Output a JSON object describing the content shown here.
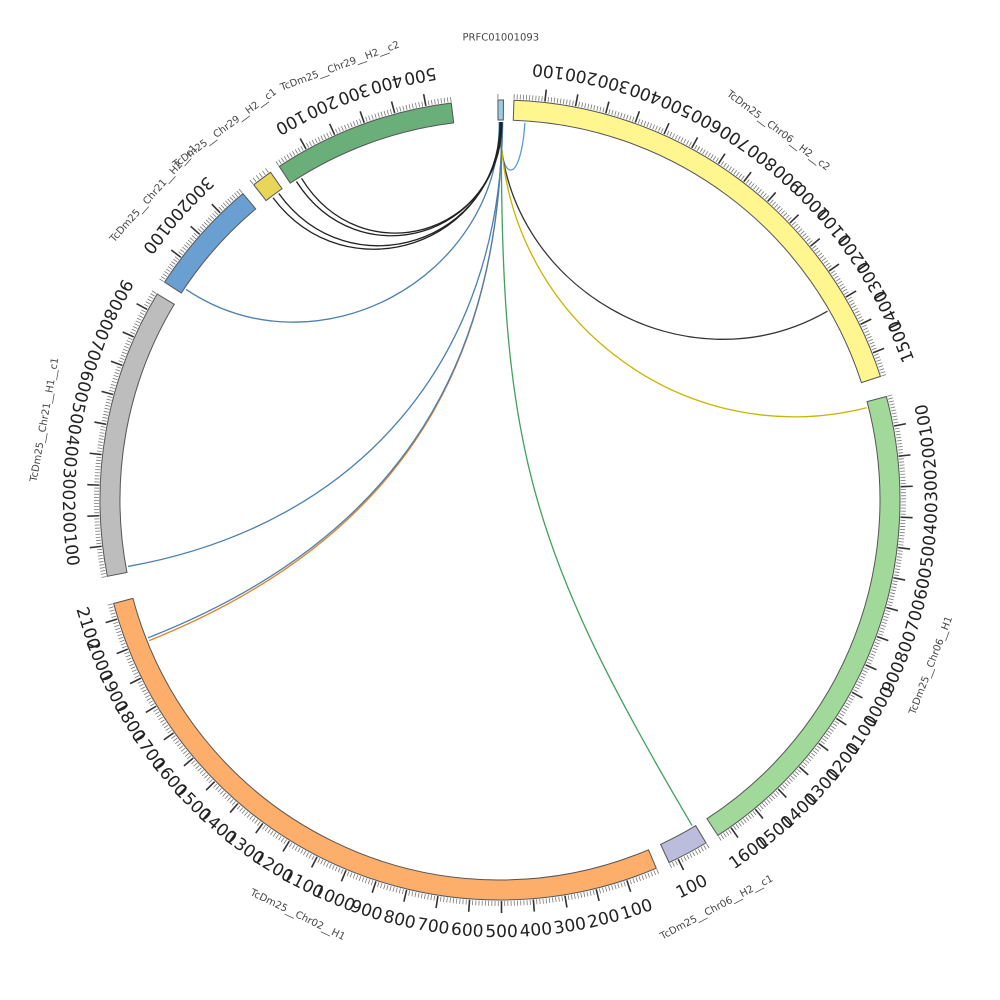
{
  "segments": [
    {
      "id": "prfc",
      "name": "PRFC01001093",
      "length": 8,
      "color": "#9ecae1",
      "start_deg": -0.3,
      "end_deg": 0.5,
      "tick_labels": []
    },
    {
      "id": "chr06_h2_c2",
      "name": "TcDm25__Chr06__H2__c2",
      "length": 1580,
      "color": "#fff68f",
      "start_deg": 2,
      "end_deg": 72,
      "tick_labels": [
        100,
        200,
        300,
        400,
        500,
        600,
        700,
        800,
        900,
        1000,
        1100,
        1200,
        1300,
        1400,
        1500
      ]
    },
    {
      "id": "chr06_h1",
      "name": "TcDm25__Chr06__H1",
      "length": 1650,
      "color": "#a1d99b",
      "start_deg": 75,
      "end_deg": 147,
      "tick_labels": [
        100,
        200,
        300,
        400,
        500,
        600,
        700,
        800,
        900,
        1000,
        1100,
        1200,
        1300,
        1400,
        1500,
        1600
      ]
    },
    {
      "id": "chr06_h2_c1",
      "name": "TcDm25__Chr06__H2__c1",
      "length": 130,
      "color": "#bcbddc",
      "start_deg": 149,
      "end_deg": 155,
      "tick_labels": [
        100
      ]
    },
    {
      "id": "chr02_h1",
      "name": "TcDm25__Chr02__H1",
      "length": 2150,
      "color": "#fdae6b",
      "start_deg": 157,
      "end_deg": 255,
      "tick_labels": [
        100,
        200,
        300,
        400,
        500,
        600,
        700,
        800,
        900,
        1000,
        1100,
        1200,
        1300,
        1400,
        1500,
        1600,
        1700,
        1800,
        1900,
        2000,
        2100
      ]
    },
    {
      "id": "chr21_h1_c1",
      "name": "TcDm25__Chr21__H1__c1",
      "length": 960,
      "color": "#bdbdbd",
      "start_deg": 259,
      "end_deg": 301,
      "tick_labels": [
        100,
        200,
        300,
        400,
        500,
        600,
        700,
        800,
        900
      ]
    },
    {
      "id": "chr21_h2_c1",
      "name": "TcDm25__Chr21__H2__c1",
      "length": 400,
      "color": "#6a9fd1",
      "start_deg": 303,
      "end_deg": 320,
      "tick_labels": [
        100,
        200,
        300
      ]
    },
    {
      "id": "chr29_h2_c1",
      "name": "TcDm25__Chr29__H2__c1",
      "length": 55,
      "color": "#e8d65a",
      "start_deg": 322,
      "end_deg": 325,
      "tick_labels": []
    },
    {
      "id": "chr29_h2_c2",
      "name": "TcDm25__Chr29__H2__c2",
      "length": 580,
      "color": "#6aae7a",
      "start_deg": 326.5,
      "end_deg": 353,
      "tick_labels": [
        100,
        200,
        300,
        400,
        500
      ]
    }
  ],
  "links": [
    {
      "from": "prfc",
      "from_pos": 2,
      "to": "chr06_h2_c2",
      "to_pos": 40,
      "color": "#5b9bd5"
    },
    {
      "from": "prfc",
      "from_pos": 3,
      "to": "chr06_h2_c2",
      "to_pos": 1310,
      "color": "#333333"
    },
    {
      "from": "prfc",
      "from_pos": 4,
      "to": "chr06_h1",
      "to_pos": 20,
      "color": "#c9b400"
    },
    {
      "from": "prfc",
      "from_pos": 5,
      "to": "chr06_h2_c1",
      "to_pos": 10,
      "color": "#41a05f"
    },
    {
      "from": "prfc",
      "from_pos": 6,
      "to": "chr02_h1",
      "to_pos": 2000,
      "color": "#e67e22"
    },
    {
      "from": "prfc",
      "from_pos": 6,
      "to": "chr02_h1",
      "to_pos": 2010,
      "color": "#4a7fb0"
    },
    {
      "from": "prfc",
      "from_pos": 7,
      "to": "chr21_h1_c1",
      "to_pos": 20,
      "color": "#4a7fb0"
    },
    {
      "from": "prfc",
      "from_pos": 2,
      "to": "chr21_h2_c1",
      "to_pos": 20,
      "color": "#4a7fb0"
    },
    {
      "from": "prfc",
      "from_pos": 3,
      "to": "chr29_h2_c1",
      "to_pos": 20,
      "color": "#222222"
    },
    {
      "from": "prfc",
      "from_pos": 4,
      "to": "chr29_h2_c1",
      "to_pos": 40,
      "color": "#222222"
    },
    {
      "from": "prfc",
      "from_pos": 5,
      "to": "chr29_h2_c2",
      "to_pos": 20,
      "color": "#222222"
    },
    {
      "from": "prfc",
      "from_pos": 6,
      "to": "chr29_h2_c2",
      "to_pos": 40,
      "color": "#222222"
    }
  ]
}
